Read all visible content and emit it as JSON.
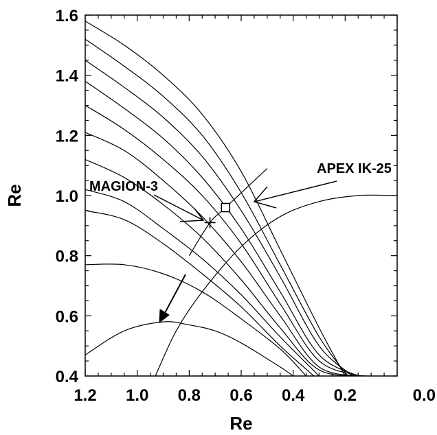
{
  "chart_data": {
    "type": "line",
    "title": "",
    "xlabel": "Re",
    "ylabel": "Re",
    "xlim": [
      1.2,
      0.0
    ],
    "ylim": [
      0.4,
      1.6
    ],
    "xticks": [
      "1.2",
      "1.0",
      "0.8",
      "0.6",
      "0.4",
      "0.2",
      "0.0"
    ],
    "yticks": [
      "0.4",
      "0.6",
      "0.8",
      "1.0",
      "1.2",
      "1.4",
      "1.6"
    ],
    "grid": false,
    "field_lines": [
      [
        [
          1.2,
          1.58
        ],
        [
          1.05,
          1.5
        ],
        [
          0.9,
          1.4
        ],
        [
          0.75,
          1.27
        ],
        [
          0.6,
          1.08
        ],
        [
          0.45,
          0.82
        ],
        [
          0.3,
          0.56
        ],
        [
          0.2,
          0.4
        ]
      ],
      [
        [
          1.2,
          1.52
        ],
        [
          1.05,
          1.43
        ],
        [
          0.9,
          1.33
        ],
        [
          0.75,
          1.2
        ],
        [
          0.6,
          1.01
        ],
        [
          0.45,
          0.77
        ],
        [
          0.3,
          0.53
        ],
        [
          0.19,
          0.4
        ]
      ],
      [
        [
          1.2,
          1.45
        ],
        [
          1.05,
          1.36
        ],
        [
          0.9,
          1.26
        ],
        [
          0.75,
          1.13
        ],
        [
          0.6,
          0.95
        ],
        [
          0.45,
          0.73
        ],
        [
          0.3,
          0.5
        ],
        [
          0.17,
          0.4
        ]
      ],
      [
        [
          1.2,
          1.38
        ],
        [
          1.05,
          1.29
        ],
        [
          0.9,
          1.19
        ],
        [
          0.75,
          1.06
        ],
        [
          0.6,
          0.89
        ],
        [
          0.45,
          0.68
        ],
        [
          0.3,
          0.47
        ],
        [
          0.15,
          0.4
        ]
      ],
      [
        [
          1.2,
          1.3
        ],
        [
          1.05,
          1.22
        ],
        [
          0.9,
          1.12
        ],
        [
          0.75,
          1.0
        ],
        [
          0.6,
          0.84
        ],
        [
          0.45,
          0.64
        ],
        [
          0.3,
          0.45
        ],
        [
          0.14,
          0.4
        ]
      ],
      [
        [
          1.2,
          1.21
        ],
        [
          1.05,
          1.15
        ],
        [
          0.9,
          1.05
        ],
        [
          0.75,
          0.93
        ],
        [
          0.6,
          0.78
        ],
        [
          0.45,
          0.6
        ],
        [
          0.3,
          0.43
        ],
        [
          0.13,
          0.4
        ]
      ],
      [
        [
          1.2,
          1.12
        ],
        [
          1.05,
          1.06
        ],
        [
          0.9,
          0.97
        ],
        [
          0.75,
          0.86
        ],
        [
          0.6,
          0.72
        ],
        [
          0.45,
          0.56
        ],
        [
          0.3,
          0.42
        ],
        [
          0.12,
          0.4
        ]
      ],
      [
        [
          1.2,
          1.02
        ],
        [
          1.05,
          0.98
        ],
        [
          0.9,
          0.89
        ],
        [
          0.75,
          0.79
        ],
        [
          0.6,
          0.67
        ],
        [
          0.45,
          0.53
        ],
        [
          0.3,
          0.4
        ]
      ],
      [
        [
          1.2,
          0.95
        ],
        [
          1.05,
          0.92
        ],
        [
          0.9,
          0.84
        ],
        [
          0.75,
          0.74
        ],
        [
          0.6,
          0.63
        ],
        [
          0.45,
          0.5
        ],
        [
          0.32,
          0.4
        ]
      ],
      [
        [
          1.2,
          0.77
        ],
        [
          1.05,
          0.77
        ],
        [
          0.9,
          0.74
        ],
        [
          0.75,
          0.68
        ],
        [
          0.6,
          0.59
        ],
        [
          0.45,
          0.49
        ],
        [
          0.35,
          0.4
        ]
      ],
      [
        [
          1.2,
          0.47
        ],
        [
          1.05,
          0.55
        ],
        [
          0.9,
          0.58
        ],
        [
          0.8,
          0.57
        ],
        [
          0.7,
          0.55
        ],
        [
          0.6,
          0.51
        ],
        [
          0.45,
          0.43
        ],
        [
          0.4,
          0.4
        ]
      ],
      [
        [
          0.93,
          0.4
        ],
        [
          0.85,
          0.55
        ],
        [
          0.75,
          0.68
        ],
        [
          0.6,
          0.83
        ],
        [
          0.45,
          0.93
        ],
        [
          0.3,
          0.98
        ],
        [
          0.15,
          1.0
        ],
        [
          0.0,
          1.0
        ]
      ]
    ],
    "trajectory": [
      [
        0.8,
        0.8
      ],
      [
        0.72,
        0.91
      ],
      [
        0.66,
        0.96
      ],
      [
        0.5,
        1.09
      ]
    ],
    "markers": [
      {
        "shape": "plus",
        "x": 0.72,
        "y": 0.91
      },
      {
        "shape": "square",
        "x": 0.66,
        "y": 0.96
      }
    ],
    "annotations": [
      {
        "text": "MAGION-3"
      },
      {
        "text": "APEX IK-25"
      }
    ]
  }
}
